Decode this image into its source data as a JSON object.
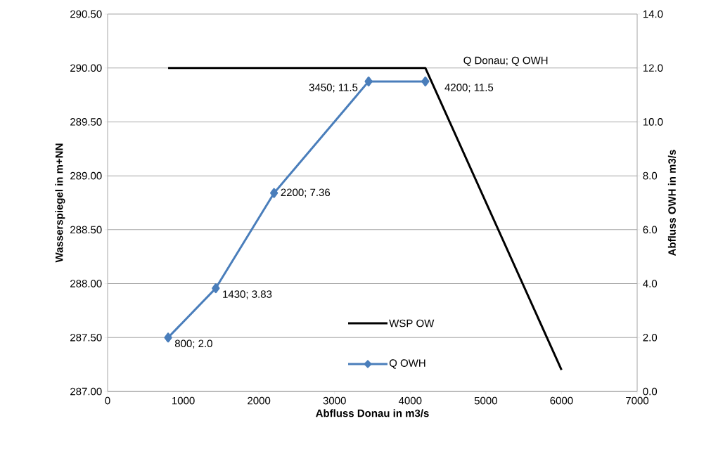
{
  "chart_data": {
    "type": "line",
    "xlabel": "Abfluss Donau in m3/s",
    "ylabel": "Wasserspiegel in m+NN",
    "y2label": "Abfluss OWH in m3/s",
    "xlim": [
      0,
      7000
    ],
    "xticks": [
      0,
      1000,
      2000,
      3000,
      4000,
      5000,
      6000,
      7000
    ],
    "ylim": [
      287.0,
      290.5
    ],
    "yticks": [
      {
        "value": 287.0,
        "label": "287.00"
      },
      {
        "value": 287.5,
        "label": "287.50"
      },
      {
        "value": 288.0,
        "label": "288.00"
      },
      {
        "value": 288.5,
        "label": "288.50"
      },
      {
        "value": 289.0,
        "label": "289.00"
      },
      {
        "value": 289.5,
        "label": "289.50"
      },
      {
        "value": 290.0,
        "label": "290.00"
      },
      {
        "value": 290.5,
        "label": "290.50"
      }
    ],
    "y2lim": [
      0,
      14
    ],
    "y2ticks": [
      {
        "value": 0,
        "label": "0.0"
      },
      {
        "value": 2,
        "label": "2.0"
      },
      {
        "value": 4,
        "label": "4.0"
      },
      {
        "value": 6,
        "label": "6.0"
      },
      {
        "value": 8,
        "label": "8.0"
      },
      {
        "value": 10,
        "label": "10.0"
      },
      {
        "value": 12,
        "label": "12.0"
      },
      {
        "value": 14,
        "label": "14.0"
      }
    ],
    "grid": "y",
    "legend": "bottom",
    "annotations": [
      "Q Donau; Q OWH"
    ],
    "series": [
      {
        "name": "WSP OW",
        "color": "#000000",
        "marker": "none",
        "x": [
          800,
          4200,
          6000
        ],
        "values": [
          290.0,
          290.0,
          287.2
        ]
      },
      {
        "name": "Q OWH",
        "color": "#4a7ebb",
        "marker": "diamond",
        "axis": "y2",
        "x": [
          800,
          1430,
          2200,
          3450,
          4200
        ],
        "values": [
          2.0,
          3.83,
          7.36,
          11.5,
          11.5
        ],
        "value_labels": [
          "800; 2.0",
          "1430; 3.83",
          "2200; 7.36",
          "3450; 11.5",
          "4200; 11.5"
        ]
      }
    ]
  }
}
